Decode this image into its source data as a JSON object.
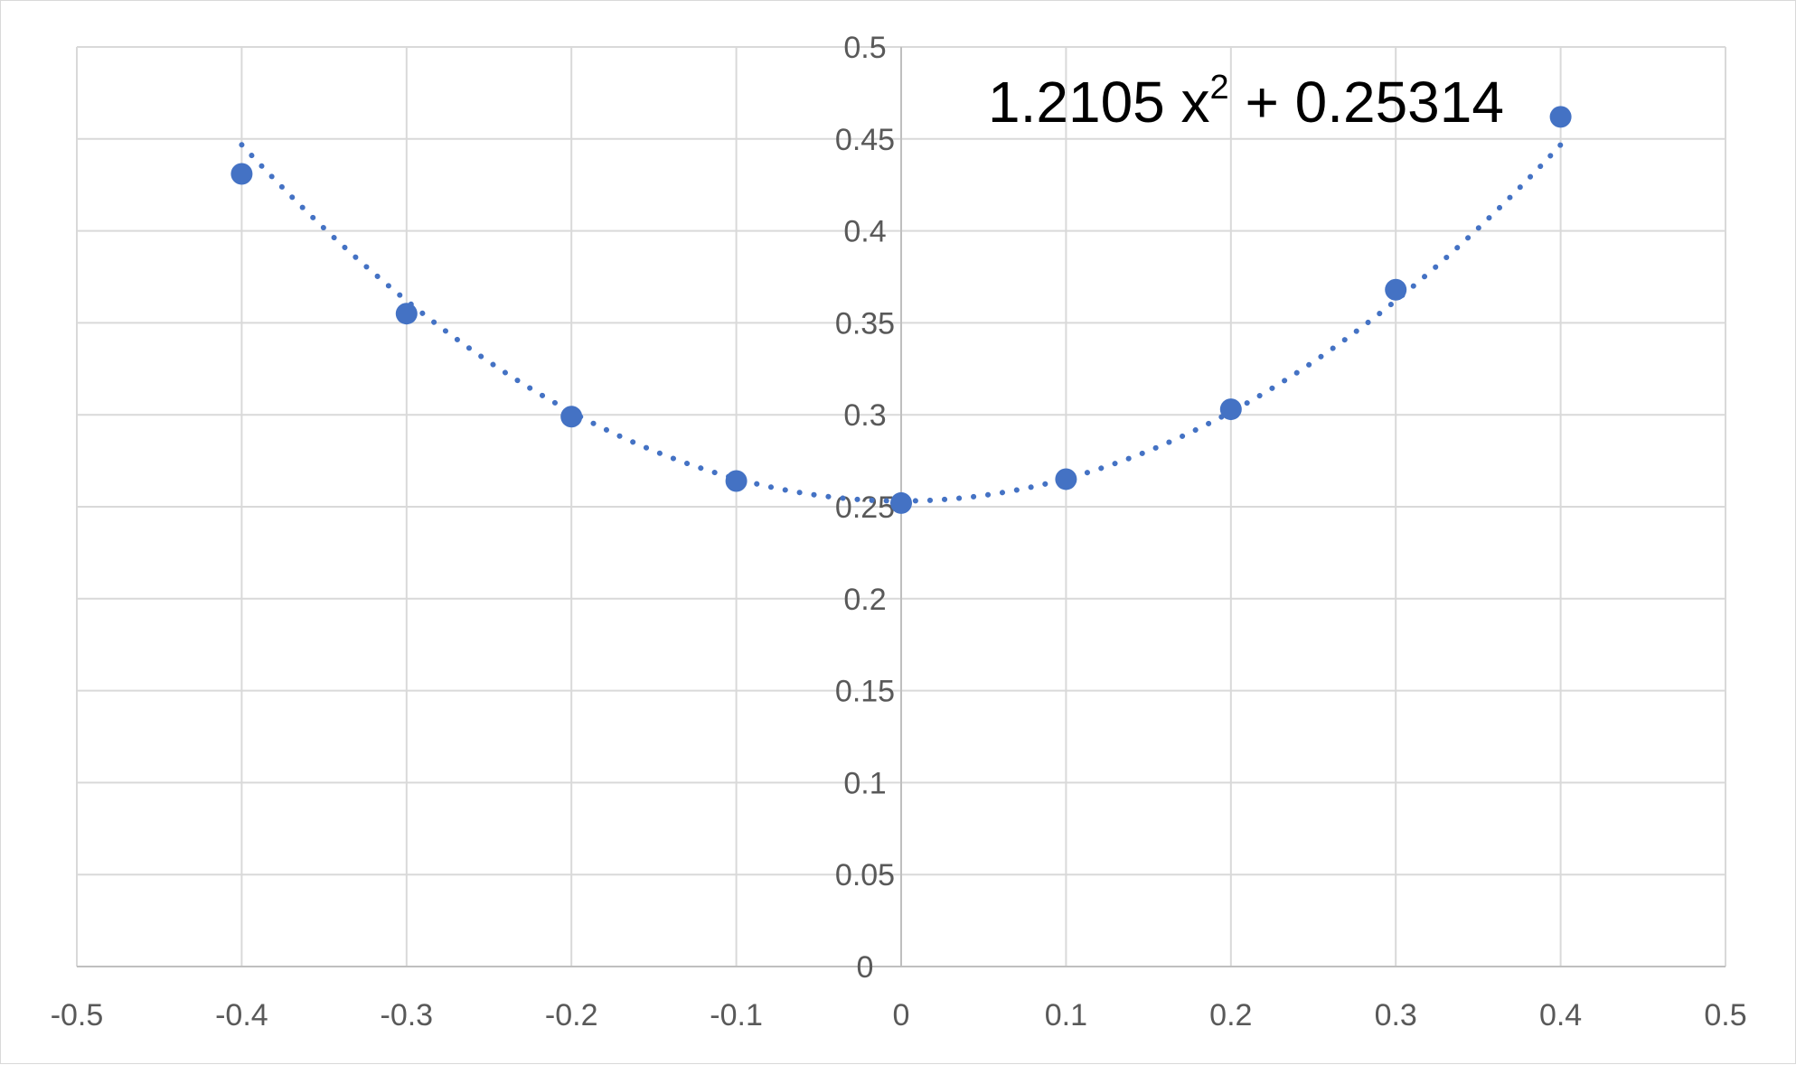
{
  "chart_data": {
    "type": "scatter",
    "title": "",
    "xlabel": "",
    "ylabel": "",
    "xlim": [
      -0.5,
      0.5
    ],
    "ylim": [
      0,
      0.5
    ],
    "x_ticks": [
      -0.5,
      -0.4,
      -0.3,
      -0.2,
      -0.1,
      0,
      0.1,
      0.2,
      0.3,
      0.4,
      0.5
    ],
    "y_ticks": [
      0,
      0.05,
      0.1,
      0.15,
      0.2,
      0.25,
      0.3,
      0.35,
      0.4,
      0.45,
      0.5
    ],
    "x_tick_labels": [
      "-0.5",
      "-0.4",
      "-0.3",
      "-0.2",
      "-0.1",
      "0",
      "0.1",
      "0.2",
      "0.3",
      "0.4",
      "0.5"
    ],
    "y_tick_labels": [
      "0",
      "0.05",
      "0.1",
      "0.15",
      "0.2",
      "0.25",
      "0.3",
      "0.35",
      "0.4",
      "0.45",
      "0.5"
    ],
    "grid": true,
    "legend": "none",
    "series": [
      {
        "color": "#4472C4",
        "points": [
          {
            "x": -0.4,
            "y": 0.431
          },
          {
            "x": -0.3,
            "y": 0.355
          },
          {
            "x": -0.2,
            "y": 0.299
          },
          {
            "x": -0.1,
            "y": 0.264
          },
          {
            "x": 0,
            "y": 0.252
          },
          {
            "x": 0.1,
            "y": 0.265
          },
          {
            "x": 0.2,
            "y": 0.303
          },
          {
            "x": 0.3,
            "y": 0.368
          },
          {
            "x": 0.4,
            "y": 0.462
          }
        ]
      }
    ],
    "trendline": {
      "type": "polynomial",
      "style": "dotted",
      "color": "#4472C4",
      "coefficients": {
        "a": 1.2105,
        "b": 0,
        "c": 0.25314
      },
      "x_range": [
        -0.4,
        0.4
      ]
    },
    "annotation": {
      "coef": "1.2105 x",
      "exponent": "2",
      "constant": " + 0.25314"
    }
  }
}
